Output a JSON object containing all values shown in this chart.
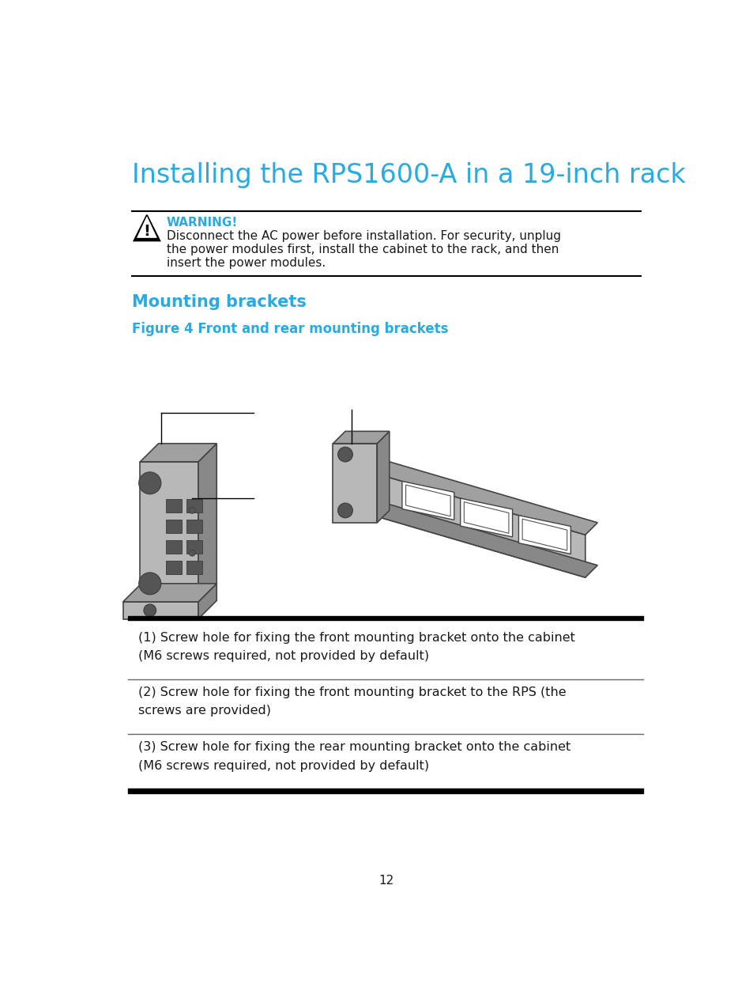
{
  "title": "Installing the RPS1600-A in a 19-inch rack",
  "title_color": "#29abe2",
  "title_fontsize": 24,
  "warning_label": "WARNING!",
  "warning_color": "#29abe2",
  "warning_text_line1": "Disconnect the AC power before installation. For security, unplug",
  "warning_text_line2": "the power modules first, install the cabinet to the rack, and then",
  "warning_text_line3": "insert the power modules.",
  "section_title": "Mounting brackets",
  "section_color": "#29abe2",
  "figure_title": "Figure 4 Front and rear mounting brackets",
  "figure_title_color": "#29abe2",
  "table_rows": [
    "(1) Screw hole for fixing the front mounting bracket onto the cabinet\n(M6 screws required, not provided by default)",
    "(2) Screw hole for fixing the front mounting bracket to the RPS (the\nscrews are provided)",
    "(3) Screw hole for fixing the rear mounting bracket onto the cabinet\n(M6 screws required, not provided by default)"
  ],
  "page_number": "12",
  "bg_color": "#ffffff",
  "text_color": "#1a1a1a",
  "line_color": "#000000",
  "bracket_light": "#b8b8b8",
  "bracket_mid": "#a0a0a0",
  "bracket_dark": "#888888",
  "bracket_hole": "#555555",
  "bracket_edge": "#444444"
}
